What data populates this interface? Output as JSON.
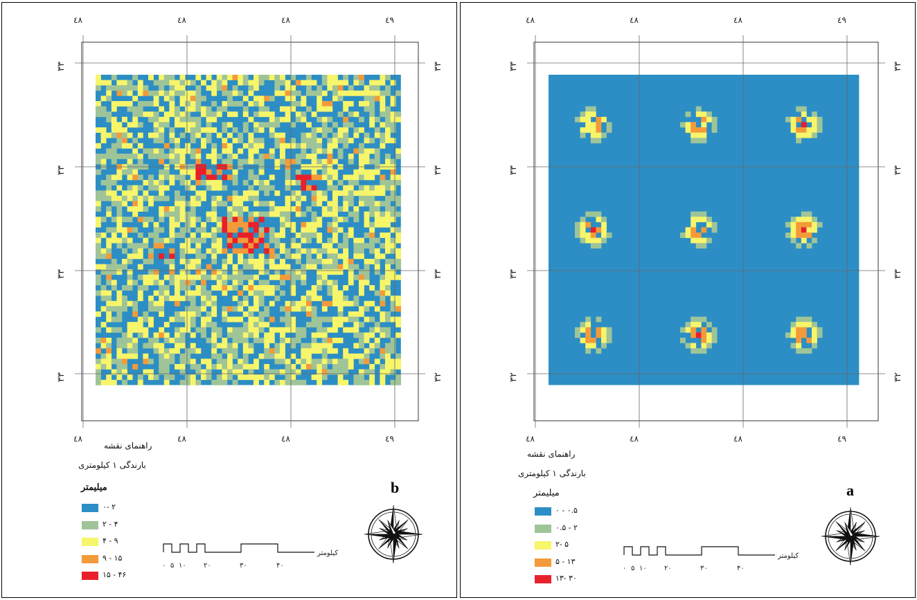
{
  "panels": {
    "a": {
      "letter": "a",
      "top_labels": [
        "٤٨",
        "٤٨",
        "٤٨",
        "٤٩"
      ],
      "bottom_labels": [
        "٤٨",
        "٤٨",
        "٤٨",
        "٤٩"
      ],
      "left_labels": [
        "٣٣",
        "٣٣",
        "٣٣",
        "٣٢"
      ],
      "right_labels": [
        "٣٣",
        "٣٣",
        "٣٣",
        "٣٢"
      ],
      "legend_title": "راهنمای نقشه",
      "legend_subtitle": "بارندگی ۱ کیلومتری",
      "legend_unit": "میلیمتر",
      "legend": [
        {
          "label": "۰ - ۰.۵",
          "color": "#2c8ec4"
        },
        {
          "label": "۰.۵ - ۲",
          "color": "#9fc498"
        },
        {
          "label": "۲- ۵",
          "color": "#f7f56a"
        },
        {
          "label": "۵ - ۱۳",
          "color": "#f39a3a"
        },
        {
          "label": "۱۳- ۳۰",
          "color": "#e8202b"
        }
      ],
      "scale_label": "کیلومتر",
      "scale_ticks": [
        "۰",
        "۵",
        "۱۰",
        "۲۰",
        "۳۰",
        "۴۰"
      ]
    },
    "b": {
      "letter": "b",
      "top_labels": [
        "٤٨",
        "٤٨",
        "٤٨",
        "٤٩"
      ],
      "bottom_labels": [
        "٤٨",
        "٤٨",
        "٤٨",
        "٤٩"
      ],
      "left_labels": [
        "٣٣",
        "٣٣",
        "٣٣",
        "٣٣"
      ],
      "right_labels": [
        "٣٣",
        "٣٣",
        "٣٣",
        "٣٢"
      ],
      "legend_title": "راهنمای نقشه",
      "legend_subtitle": "بارندگی ۱ کیلومتری",
      "legend_unit": "میلیمتر",
      "legend": [
        {
          "label": "۰- ۲",
          "color": "#2c8ec4"
        },
        {
          "label": "۲ - ۴",
          "color": "#9fc498"
        },
        {
          "label": "۴ - ۹",
          "color": "#f7f56a"
        },
        {
          "label": "۹ - ۱۵",
          "color": "#f39a3a"
        },
        {
          "label": "۱۵ - ۴۶",
          "color": "#e8202b"
        }
      ],
      "scale_label": "کیلومتر",
      "scale_ticks": [
        "۰",
        "۵",
        "۱۰",
        "۲۰",
        "۳۰",
        "۴۰"
      ]
    }
  }
}
